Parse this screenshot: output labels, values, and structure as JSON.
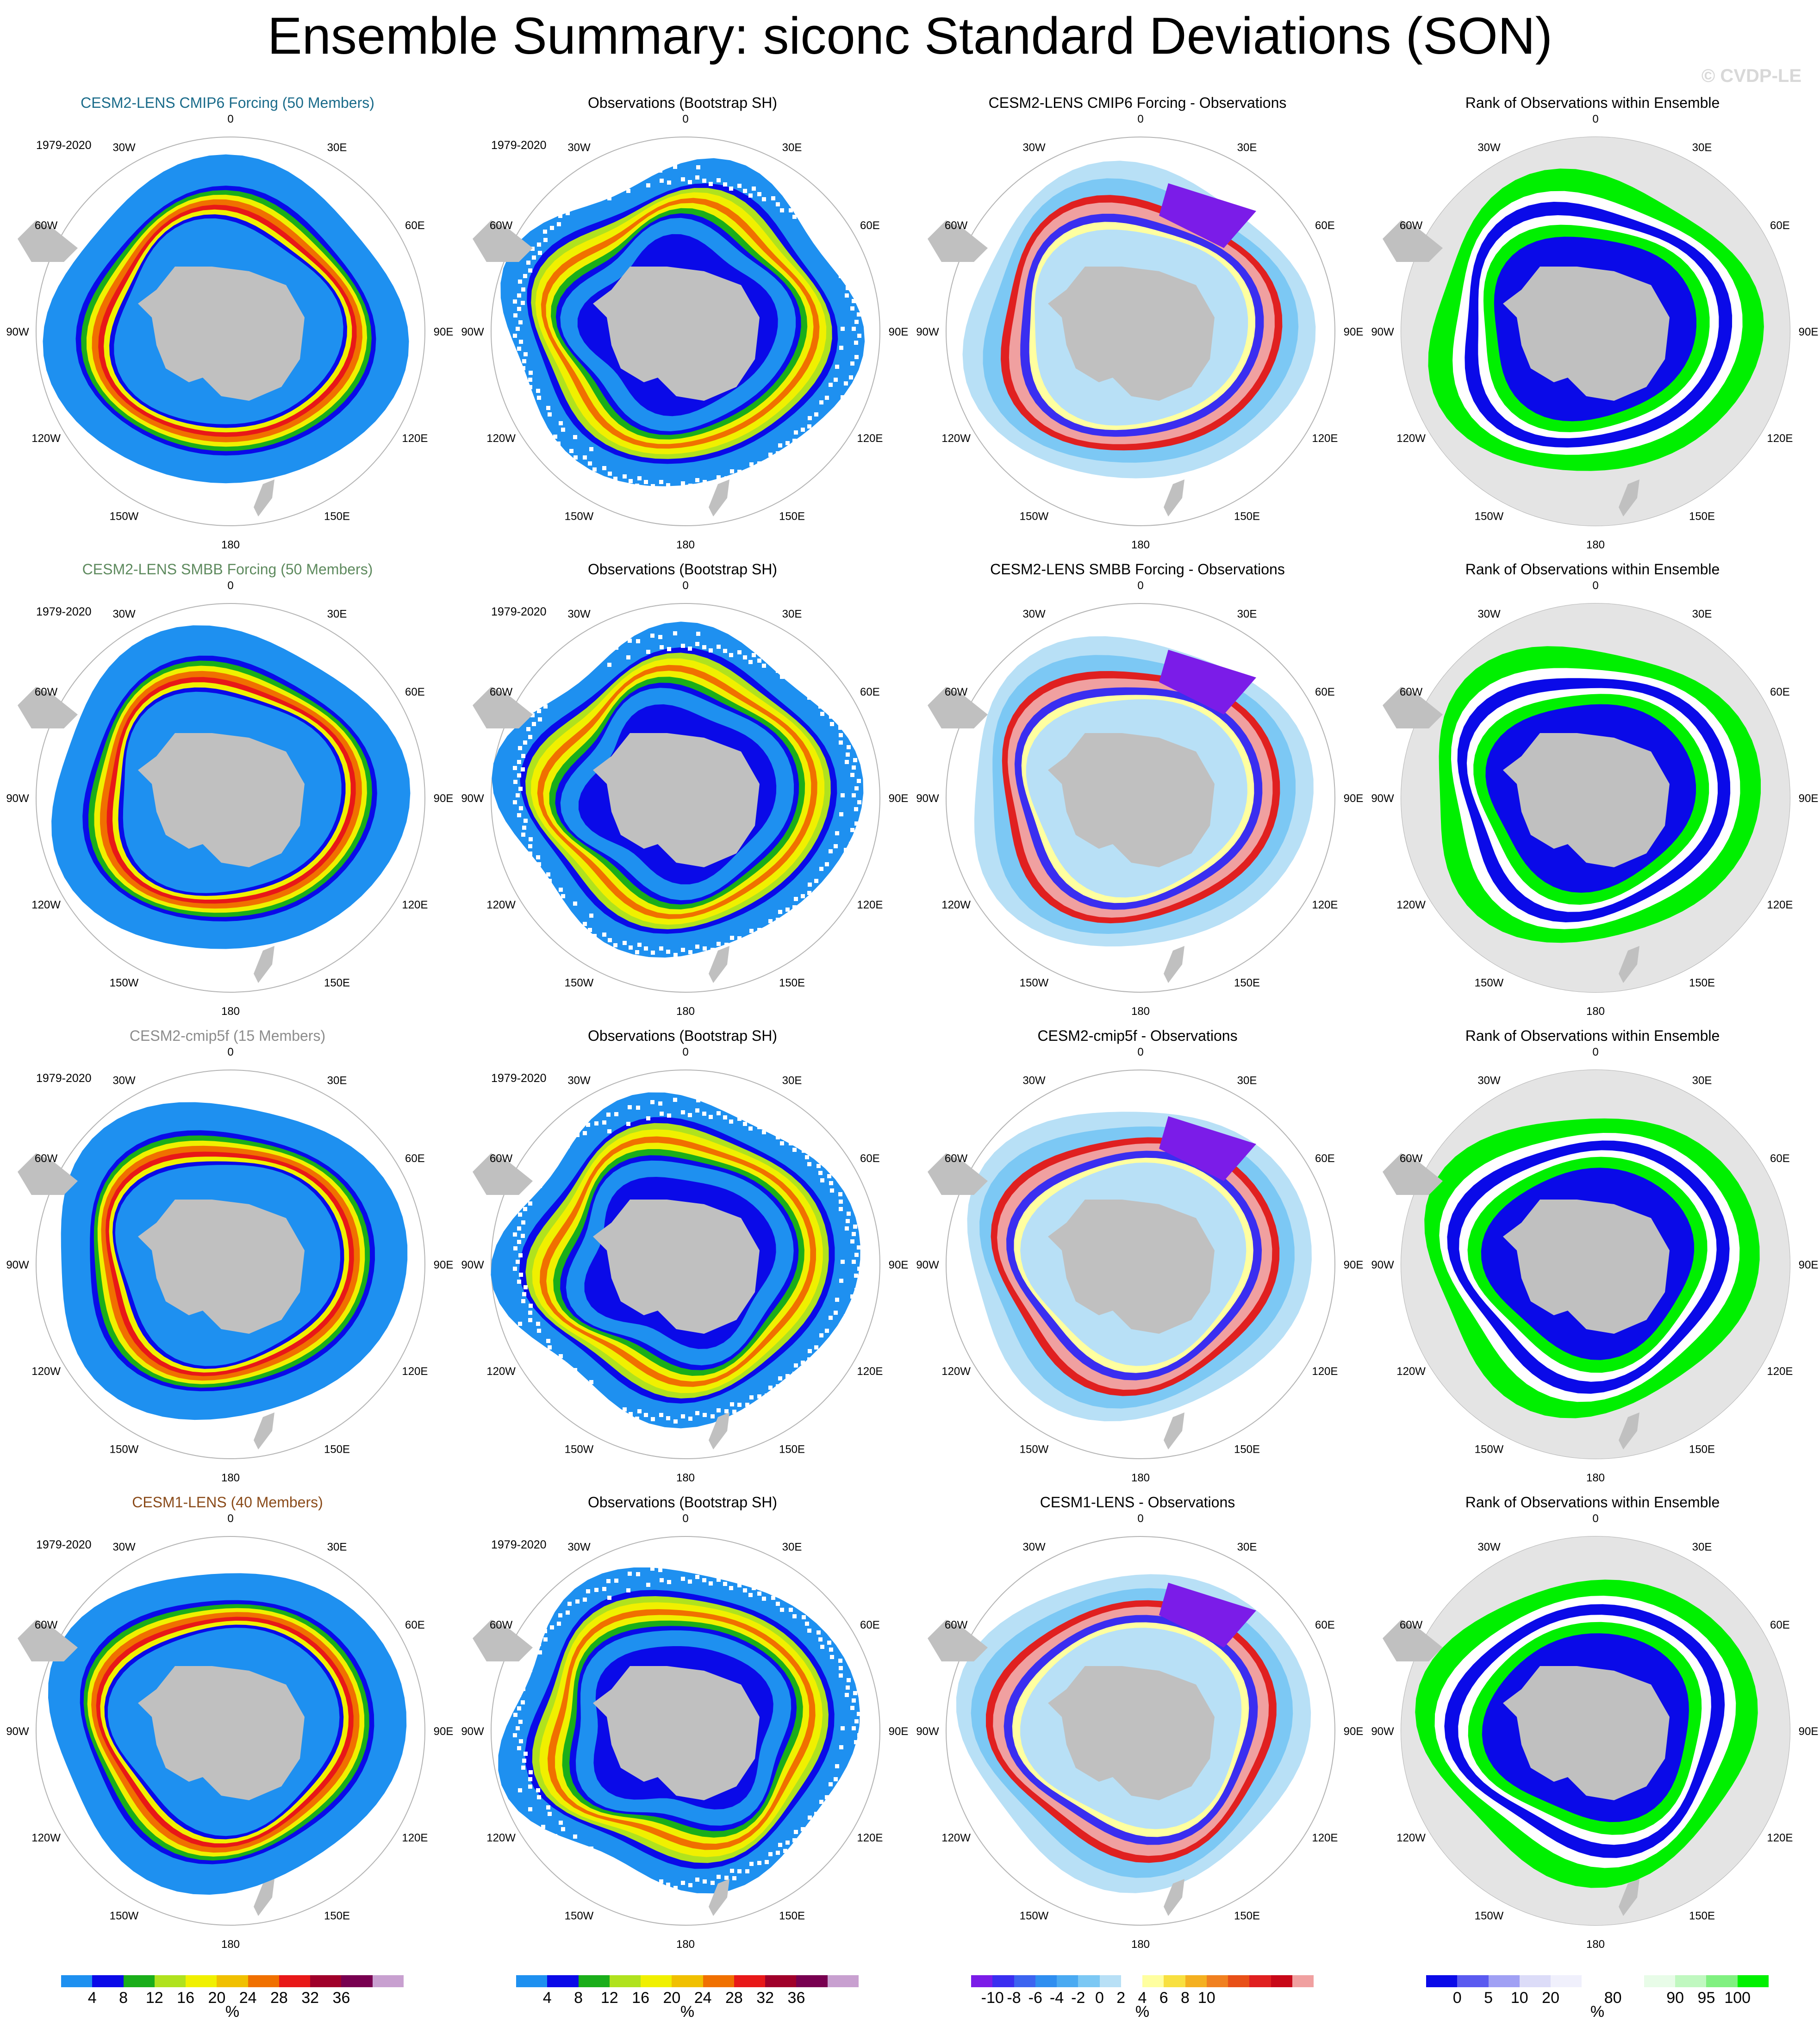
{
  "title": "Ensemble Summary: siconc Standard Deviations (SON)",
  "watermark": "© CVDP-LE",
  "period": "1979-2020",
  "longitude_labels": [
    "0",
    "30E",
    "60E",
    "90E",
    "120E",
    "150E",
    "180",
    "150W",
    "120W",
    "90W",
    "60W",
    "30W"
  ],
  "colors": {
    "ocean": "#ffffff",
    "land": "#c0c0c0",
    "rank_background": "#e4e4e4",
    "rows": [
      "#1a6b8a",
      "#5e8a5e",
      "#8c8c8c",
      "#8a4b1a"
    ]
  },
  "rows": [
    {
      "panels": [
        {
          "title": "CESM2-LENS CMIP6 Forcing (50 Members)",
          "kind": "std",
          "show_period": true
        },
        {
          "title": "Observations (Bootstrap SH)",
          "kind": "obs",
          "show_period": true
        },
        {
          "title": "CESM2-LENS CMIP6 Forcing - Observations",
          "kind": "diff",
          "show_period": false
        },
        {
          "title": "Rank of Observations within Ensemble",
          "kind": "rank",
          "show_period": false
        }
      ]
    },
    {
      "panels": [
        {
          "title": "CESM2-LENS SMBB Forcing (50 Members)",
          "kind": "std",
          "show_period": true
        },
        {
          "title": "Observations (Bootstrap SH)",
          "kind": "obs",
          "show_period": true
        },
        {
          "title": "CESM2-LENS SMBB Forcing - Observations",
          "kind": "diff",
          "show_period": false
        },
        {
          "title": "Rank of Observations within Ensemble",
          "kind": "rank",
          "show_period": false
        }
      ]
    },
    {
      "panels": [
        {
          "title": "CESM2-cmip5f (15 Members)",
          "kind": "std",
          "show_period": true
        },
        {
          "title": "Observations (Bootstrap SH)",
          "kind": "obs",
          "show_period": true
        },
        {
          "title": "CESM2-cmip5f - Observations",
          "kind": "diff",
          "show_period": false
        },
        {
          "title": "Rank of Observations within Ensemble",
          "kind": "rank",
          "show_period": false
        }
      ]
    },
    {
      "panels": [
        {
          "title": "CESM1-LENS (40 Members)",
          "kind": "std",
          "show_period": true
        },
        {
          "title": "Observations (Bootstrap SH)",
          "kind": "obs",
          "show_period": true
        },
        {
          "title": "CESM1-LENS - Observations",
          "kind": "diff",
          "show_period": false
        },
        {
          "title": "Rank of Observations within Ensemble",
          "kind": "rank",
          "show_period": false
        }
      ]
    }
  ],
  "colorbars": [
    {
      "name": "std",
      "colors": [
        "#1e90f0",
        "#0a0ae8",
        "#1aae1a",
        "#b0e21e",
        "#f0f000",
        "#f0c000",
        "#f07000",
        "#e81818",
        "#a0002a",
        "#780050",
        "#c8a0d0"
      ],
      "labels": [
        "4",
        "8",
        "12",
        "16",
        "20",
        "24",
        "28",
        "32",
        "36"
      ],
      "unit": "%"
    },
    {
      "name": "std-obs",
      "colors": [
        "#1e90f0",
        "#0a0ae8",
        "#1aae1a",
        "#b0e21e",
        "#f0f000",
        "#f0c000",
        "#f07000",
        "#e81818",
        "#a0002a",
        "#780050",
        "#c8a0d0"
      ],
      "labels": [
        "4",
        "8",
        "12",
        "16",
        "20",
        "24",
        "28",
        "32",
        "36"
      ],
      "unit": "%"
    },
    {
      "name": "diff",
      "colors": [
        "#7b1ce8",
        "#3a2ef0",
        "#3c64f0",
        "#2f8ef0",
        "#4aaaf2",
        "#7cc8f4",
        "#b8e0f6",
        "#ffffff",
        "#ffffa0",
        "#f8e040",
        "#f4b020",
        "#f08020",
        "#e85018",
        "#e02020",
        "#c80818",
        "#f0a0a0"
      ],
      "labels": [
        "-10",
        "-8",
        "-6",
        "-4",
        "-2",
        "0",
        "2",
        "4",
        "6",
        "8",
        "10"
      ],
      "unit": "%"
    },
    {
      "name": "rank",
      "colors": [
        "#0a0ae8",
        "#5a5af0",
        "#a0a0f4",
        "#dcdcf8",
        "#f0f0fc",
        "#ffffff",
        "#ffffff",
        "#e8fce8",
        "#c0f8c0",
        "#80f080",
        "#00f000"
      ],
      "labels": [
        "0",
        "5",
        "10",
        "20",
        "80",
        "90",
        "95",
        "100"
      ],
      "unit": "%"
    }
  ],
  "chart_data": [
    {
      "type": "heatmap",
      "projection": "south-polar-stereographic",
      "description_source": "ensemble mean of siconc SON std",
      "colorbar": "std",
      "levels": [
        4,
        8,
        12,
        16,
        20,
        24,
        28,
        32,
        36
      ],
      "unit": "%"
    },
    {
      "type": "heatmap",
      "projection": "south-polar-stereographic",
      "colorbar": "std",
      "levels": [
        4,
        8,
        12,
        16,
        20,
        24,
        28,
        32,
        36
      ],
      "unit": "%"
    },
    {
      "type": "heatmap",
      "projection": "south-polar-stereographic",
      "colorbar": "diff",
      "levels": [
        -10,
        -8,
        -6,
        -4,
        -2,
        0,
        2,
        4,
        6,
        8,
        10
      ],
      "unit": "%"
    },
    {
      "type": "heatmap",
      "projection": "south-polar-stereographic",
      "colorbar": "rank",
      "levels": [
        0,
        5,
        10,
        20,
        80,
        90,
        95,
        100
      ],
      "unit": "%"
    }
  ]
}
